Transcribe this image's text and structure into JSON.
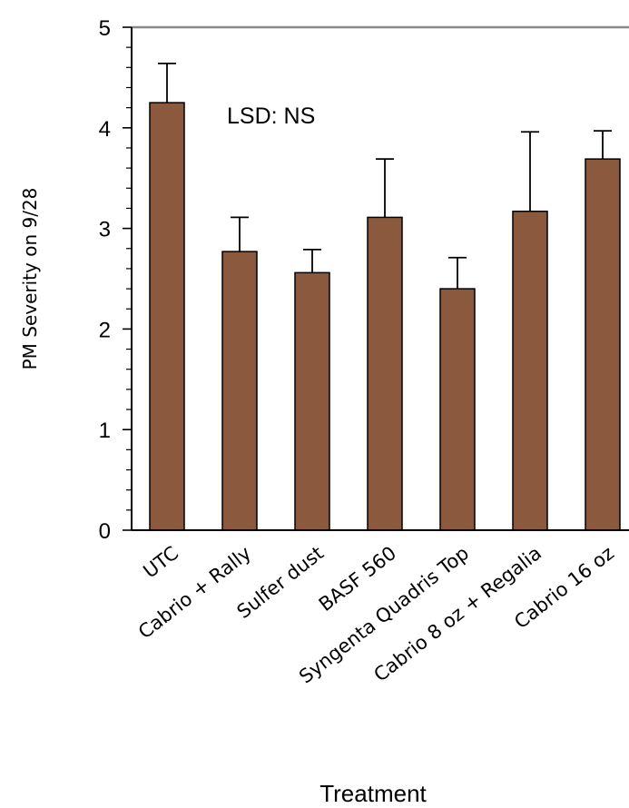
{
  "chart_data": {
    "type": "bar",
    "categories": [
      "UTC",
      "Cabrio + Rally",
      "Sulfer dust",
      "BASF 560",
      "Syngenta Quadris Top",
      "Cabrio 8 oz + Regalia",
      "Cabrio 16 oz"
    ],
    "series": [
      {
        "values": [
          4.25,
          2.77,
          2.56,
          3.11,
          2.4,
          3.17,
          3.69
        ],
        "error_upper": [
          4.64,
          3.11,
          2.79,
          3.69,
          2.71,
          3.96,
          3.97
        ]
      }
    ],
    "xlabel": "Treatment",
    "ylabel": "PM Severity on 9/28",
    "ylim": [
      0,
      5
    ],
    "yticks": [
      "0",
      "1",
      "2",
      "3",
      "4",
      "5"
    ],
    "annotation": "LSD: NS",
    "grid": false,
    "legend": "none",
    "bar_color": "#8B5A3E",
    "axis_color": "#000000"
  }
}
